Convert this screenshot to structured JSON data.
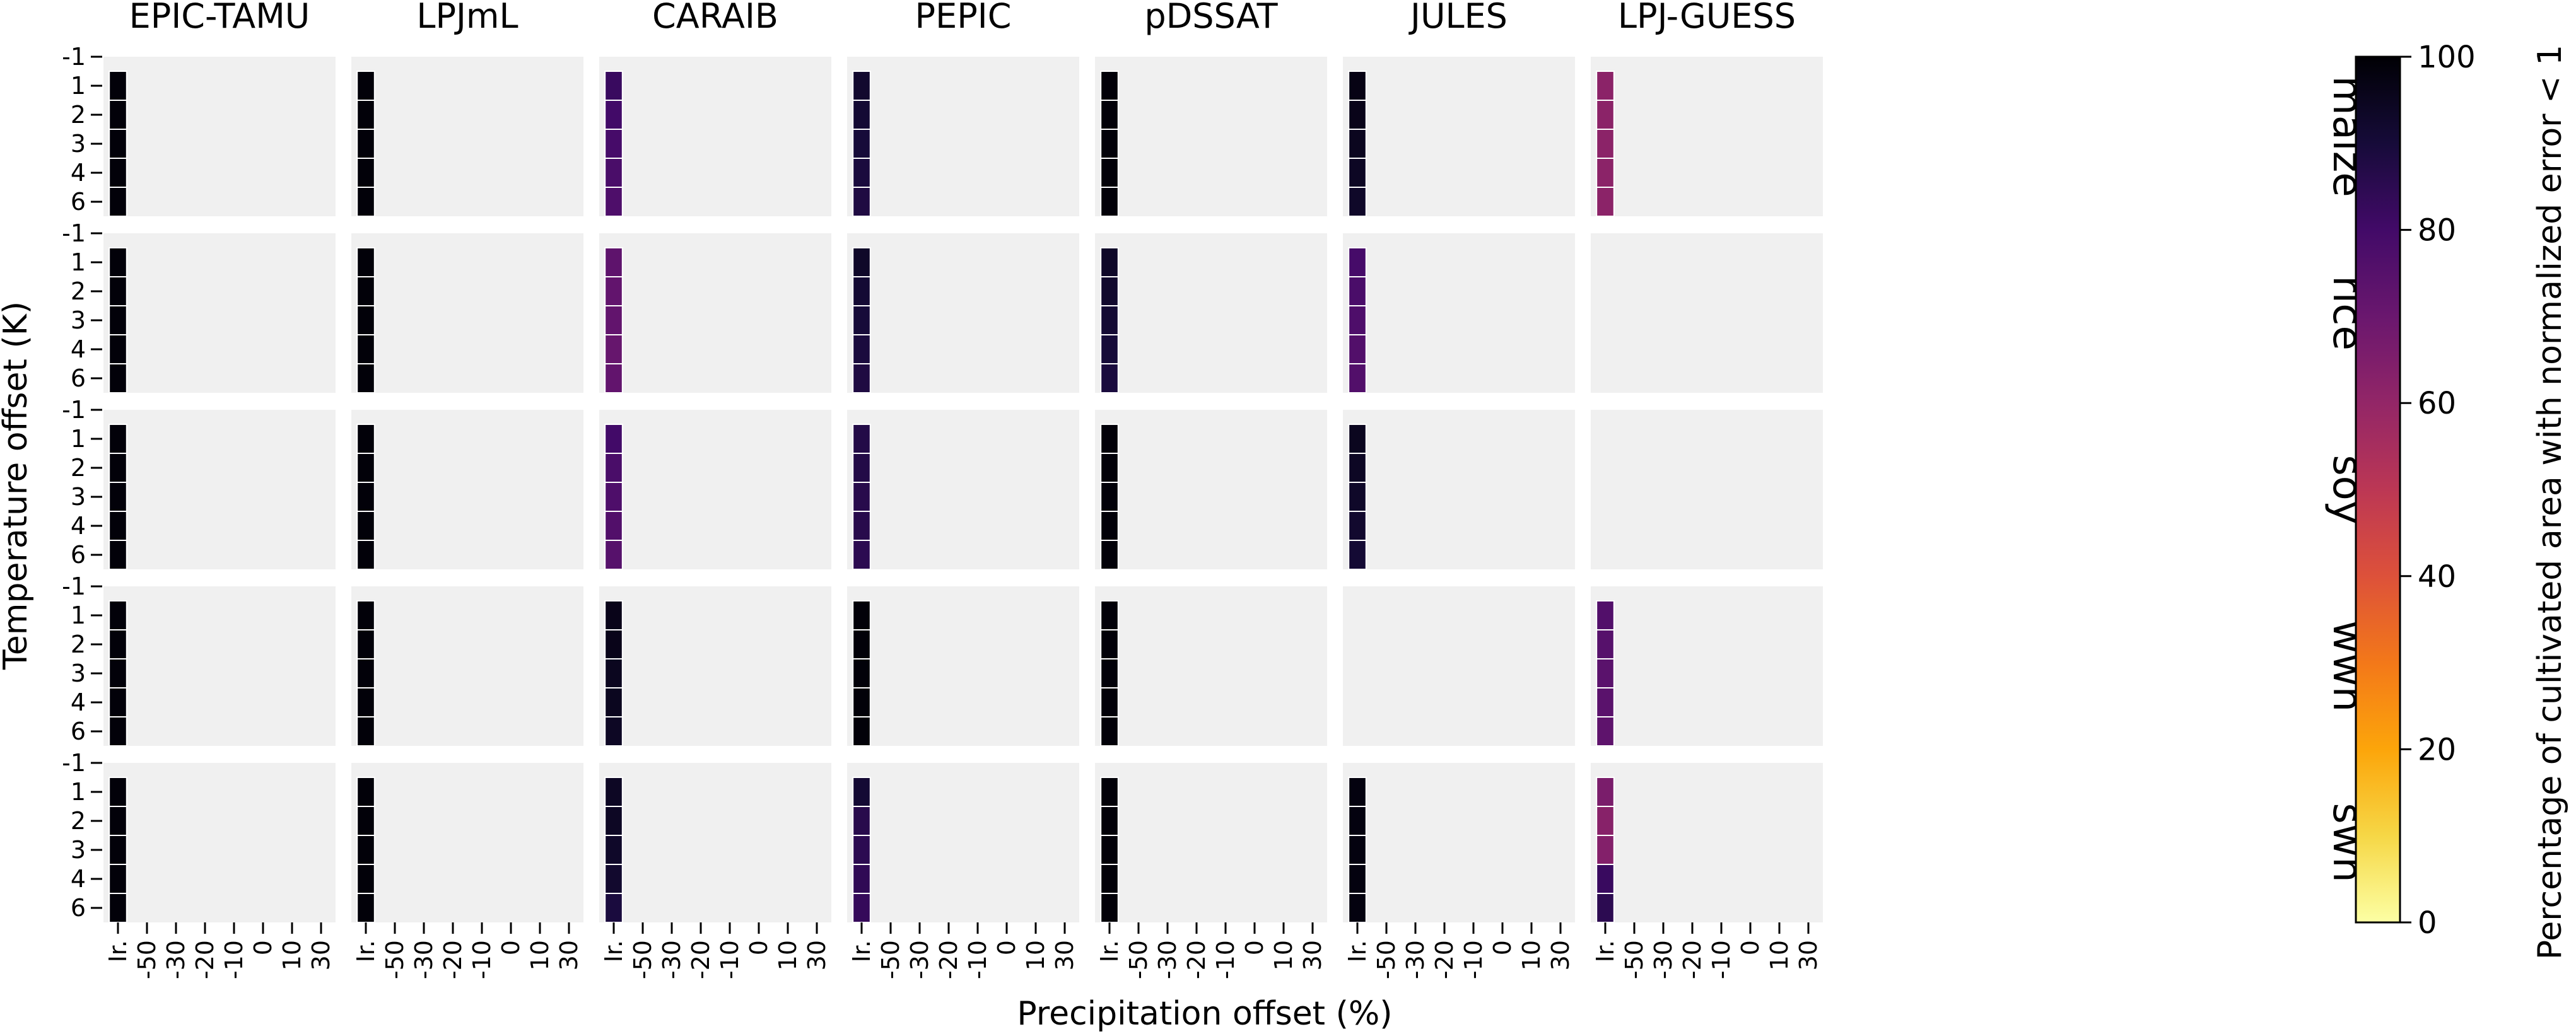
{
  "chart_data": {
    "type": "heatmap",
    "models": [
      "EPIC-TAMU",
      "LPJmL",
      "CARAIB",
      "PEPIC",
      "pDSSAT",
      "JULES",
      "LPJ-GUESS"
    ],
    "crops": [
      "maize",
      "rice",
      "soy",
      "wwh",
      "swh"
    ],
    "y_ticks": [
      "-1",
      "1",
      "2",
      "3",
      "4",
      "6"
    ],
    "x_ticks": [
      "Ir.",
      "-50",
      "-30",
      "-20",
      "-10",
      "0",
      "10",
      "30"
    ],
    "xlabel": "Precipitation offset (%)",
    "ylabel": "Temperature offset (K)",
    "colorbar": {
      "label": "Percentage of cultivated area with normalized error < 1",
      "min": 0,
      "max": 100,
      "ticks": [
        "0",
        "20",
        "40",
        "60",
        "80",
        "100"
      ],
      "colormap": "inferno_r"
    },
    "filled_column": "Ir.",
    "filled_temperatures": [
      "1",
      "2",
      "3",
      "4",
      "6"
    ],
    "missing_color": "#f0f0f0",
    "values": {
      "EPIC-TAMU": {
        "maize": [
          99,
          99,
          99,
          99,
          99
        ],
        "rice": [
          99,
          99,
          99,
          99,
          99
        ],
        "soy": [
          99,
          99,
          99,
          99,
          99
        ],
        "wwh": [
          99,
          99,
          99,
          99,
          99
        ],
        "swh": [
          99,
          99,
          99,
          99,
          99
        ]
      },
      "LPJmL": {
        "maize": [
          99,
          99,
          99,
          99,
          99
        ],
        "rice": [
          99,
          99,
          99,
          99,
          99
        ],
        "soy": [
          99,
          99,
          99,
          99,
          99
        ],
        "wwh": [
          99,
          99,
          99,
          99,
          99
        ],
        "swh": [
          99,
          99,
          99,
          99,
          99
        ]
      },
      "CARAIB": {
        "maize": [
          82,
          80,
          79,
          78,
          77
        ],
        "rice": [
          73,
          72,
          72,
          71,
          72
        ],
        "soy": [
          80,
          78,
          77,
          76,
          75
        ],
        "wwh": [
          96,
          96,
          95,
          95,
          94
        ],
        "swh": [
          94,
          94,
          93,
          92,
          89
        ]
      },
      "PEPIC": {
        "maize": [
          92,
          91,
          90,
          89,
          88
        ],
        "rice": [
          93,
          91,
          90,
          89,
          88
        ],
        "soy": [
          87,
          87,
          86,
          86,
          85
        ],
        "wwh": [
          99,
          99,
          99,
          99,
          99
        ],
        "swh": [
          91,
          86,
          85,
          84,
          83
        ]
      },
      "pDSSAT": {
        "maize": [
          99,
          99,
          99,
          99,
          99
        ],
        "rice": [
          93,
          92,
          91,
          90,
          89
        ],
        "soy": [
          99,
          99,
          99,
          99,
          99
        ],
        "wwh": [
          99,
          99,
          99,
          99,
          99
        ],
        "swh": [
          99,
          99,
          99,
          99,
          99
        ]
      },
      "JULES": {
        "maize": [
          97,
          96,
          95,
          94,
          93
        ],
        "rice": [
          79,
          78,
          77,
          76,
          76
        ],
        "soy": [
          95,
          94,
          93,
          92,
          91
        ],
        "wwh": null,
        "swh": [
          98,
          98,
          98,
          98,
          98
        ]
      },
      "LPJ-GUESS": {
        "maize": [
          62,
          62,
          62,
          62,
          62
        ],
        "rice": null,
        "soy": null,
        "wwh": [
          76,
          75,
          74,
          74,
          73
        ],
        "swh": [
          66,
          63,
          64,
          82,
          85
        ]
      }
    }
  }
}
